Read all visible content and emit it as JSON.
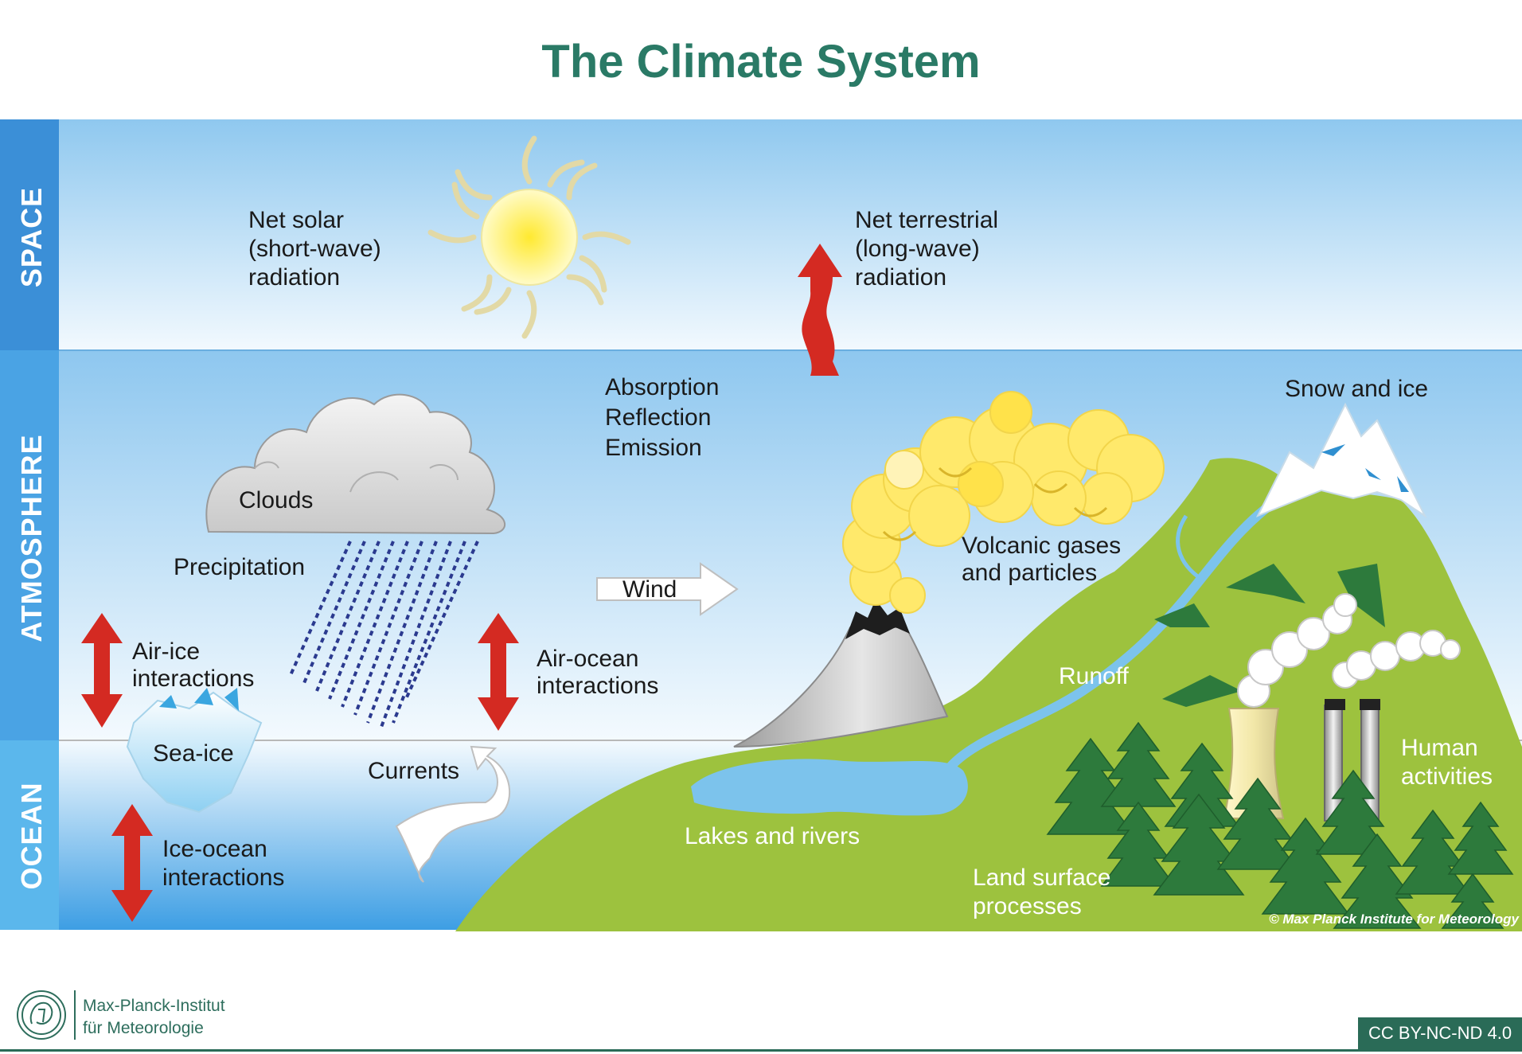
{
  "title": "The Climate System",
  "zones": {
    "space": "SPACE",
    "atmosphere": "ATMOSPHERE",
    "ocean": "OCEAN"
  },
  "labels": {
    "net_solar": [
      "Net solar",
      "(short-wave)",
      "radiation"
    ],
    "net_terrestrial": [
      "Net terrestrial",
      "(long-wave)",
      "radiation"
    ],
    "absorption": [
      "Absorption",
      "Reflection",
      "Emission"
    ],
    "snow_ice": "Snow and ice",
    "clouds": "Clouds",
    "precipitation": "Precipitation",
    "volcanic": [
      "Volcanic gases",
      "and particles"
    ],
    "wind": "Wind",
    "air_ice": [
      "Air-ice",
      "interactions"
    ],
    "air_ocean": [
      "Air-ocean",
      "interactions"
    ],
    "runoff": "Runoff",
    "sea_ice": "Sea-ice",
    "currents": "Currents",
    "lakes_rivers": "Lakes and rivers",
    "human": [
      "Human",
      "activities"
    ],
    "ice_ocean": [
      "Ice-ocean",
      "interactions"
    ],
    "land_surface": [
      "Land surface",
      "processes"
    ]
  },
  "copyright": "© Max Planck Institute for Meteorology",
  "institute": [
    "Max-Planck-Institut",
    "für Meteorologie"
  ],
  "license": "CC BY-NC-ND 4.0",
  "colors": {
    "title": "#2a7a66",
    "arrow_red": "#d42a22",
    "land_green": "#9dc23e",
    "tree_green": "#2d7a3c",
    "sun_yellow": "#fff47a",
    "zone_blue": "#3a8fd6"
  }
}
